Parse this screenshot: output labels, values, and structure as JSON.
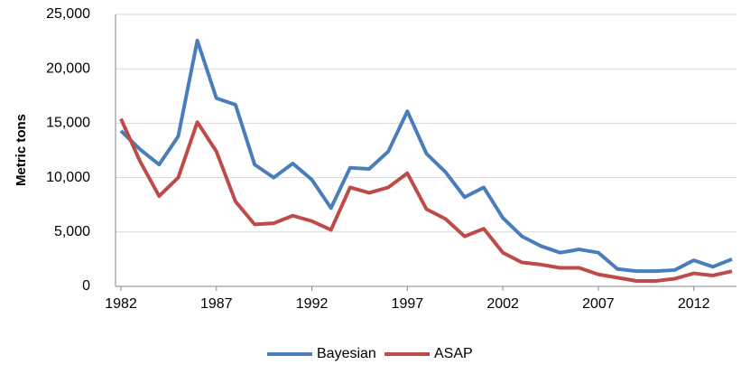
{
  "chart_data": {
    "type": "line",
    "y_label": "Metric tons",
    "x": [
      1982,
      1983,
      1984,
      1985,
      1986,
      1987,
      1988,
      1989,
      1990,
      1991,
      1992,
      1993,
      1994,
      1995,
      1996,
      1997,
      1998,
      1999,
      2000,
      2001,
      2002,
      2003,
      2004,
      2005,
      2006,
      2007,
      2008,
      2009,
      2010,
      2011,
      2012,
      2013,
      2014
    ],
    "series": [
      {
        "name": "Bayesian",
        "color": "#4a7ebb",
        "values": [
          14300,
          12600,
          11200,
          13800,
          22600,
          17300,
          16700,
          11200,
          10000,
          11300,
          9800,
          7200,
          10900,
          10800,
          12400,
          16100,
          12200,
          10500,
          8200,
          9100,
          6300,
          4600,
          3700,
          3100,
          3400,
          3100,
          1600,
          1400,
          1400,
          1500,
          2400,
          1800,
          2500
        ]
      },
      {
        "name": "ASAP",
        "color": "#be4b48",
        "values": [
          15400,
          11500,
          8300,
          10000,
          15100,
          12400,
          7800,
          5700,
          5800,
          6500,
          6000,
          5200,
          9100,
          8600,
          9100,
          10400,
          7100,
          6200,
          4600,
          5300,
          3100,
          2200,
          2000,
          1700,
          1700,
          1100,
          800,
          500,
          500,
          700,
          1200,
          1000,
          1400
        ]
      }
    ],
    "xlim": [
      1982,
      2014
    ],
    "xticks": [
      1982,
      1987,
      1992,
      1997,
      2002,
      2007,
      2012
    ],
    "ylim": [
      0,
      25000
    ],
    "yticks": [
      0,
      {
        "value": 5000,
        "label": "5,000"
      },
      {
        "value": 10000,
        "label": "10,000"
      },
      {
        "value": 15000,
        "label": "15,000"
      },
      {
        "value": 20000,
        "label": "20,000"
      },
      {
        "value": 25000,
        "label": "25,000"
      }
    ],
    "grid": true,
    "legend": "bottom"
  }
}
